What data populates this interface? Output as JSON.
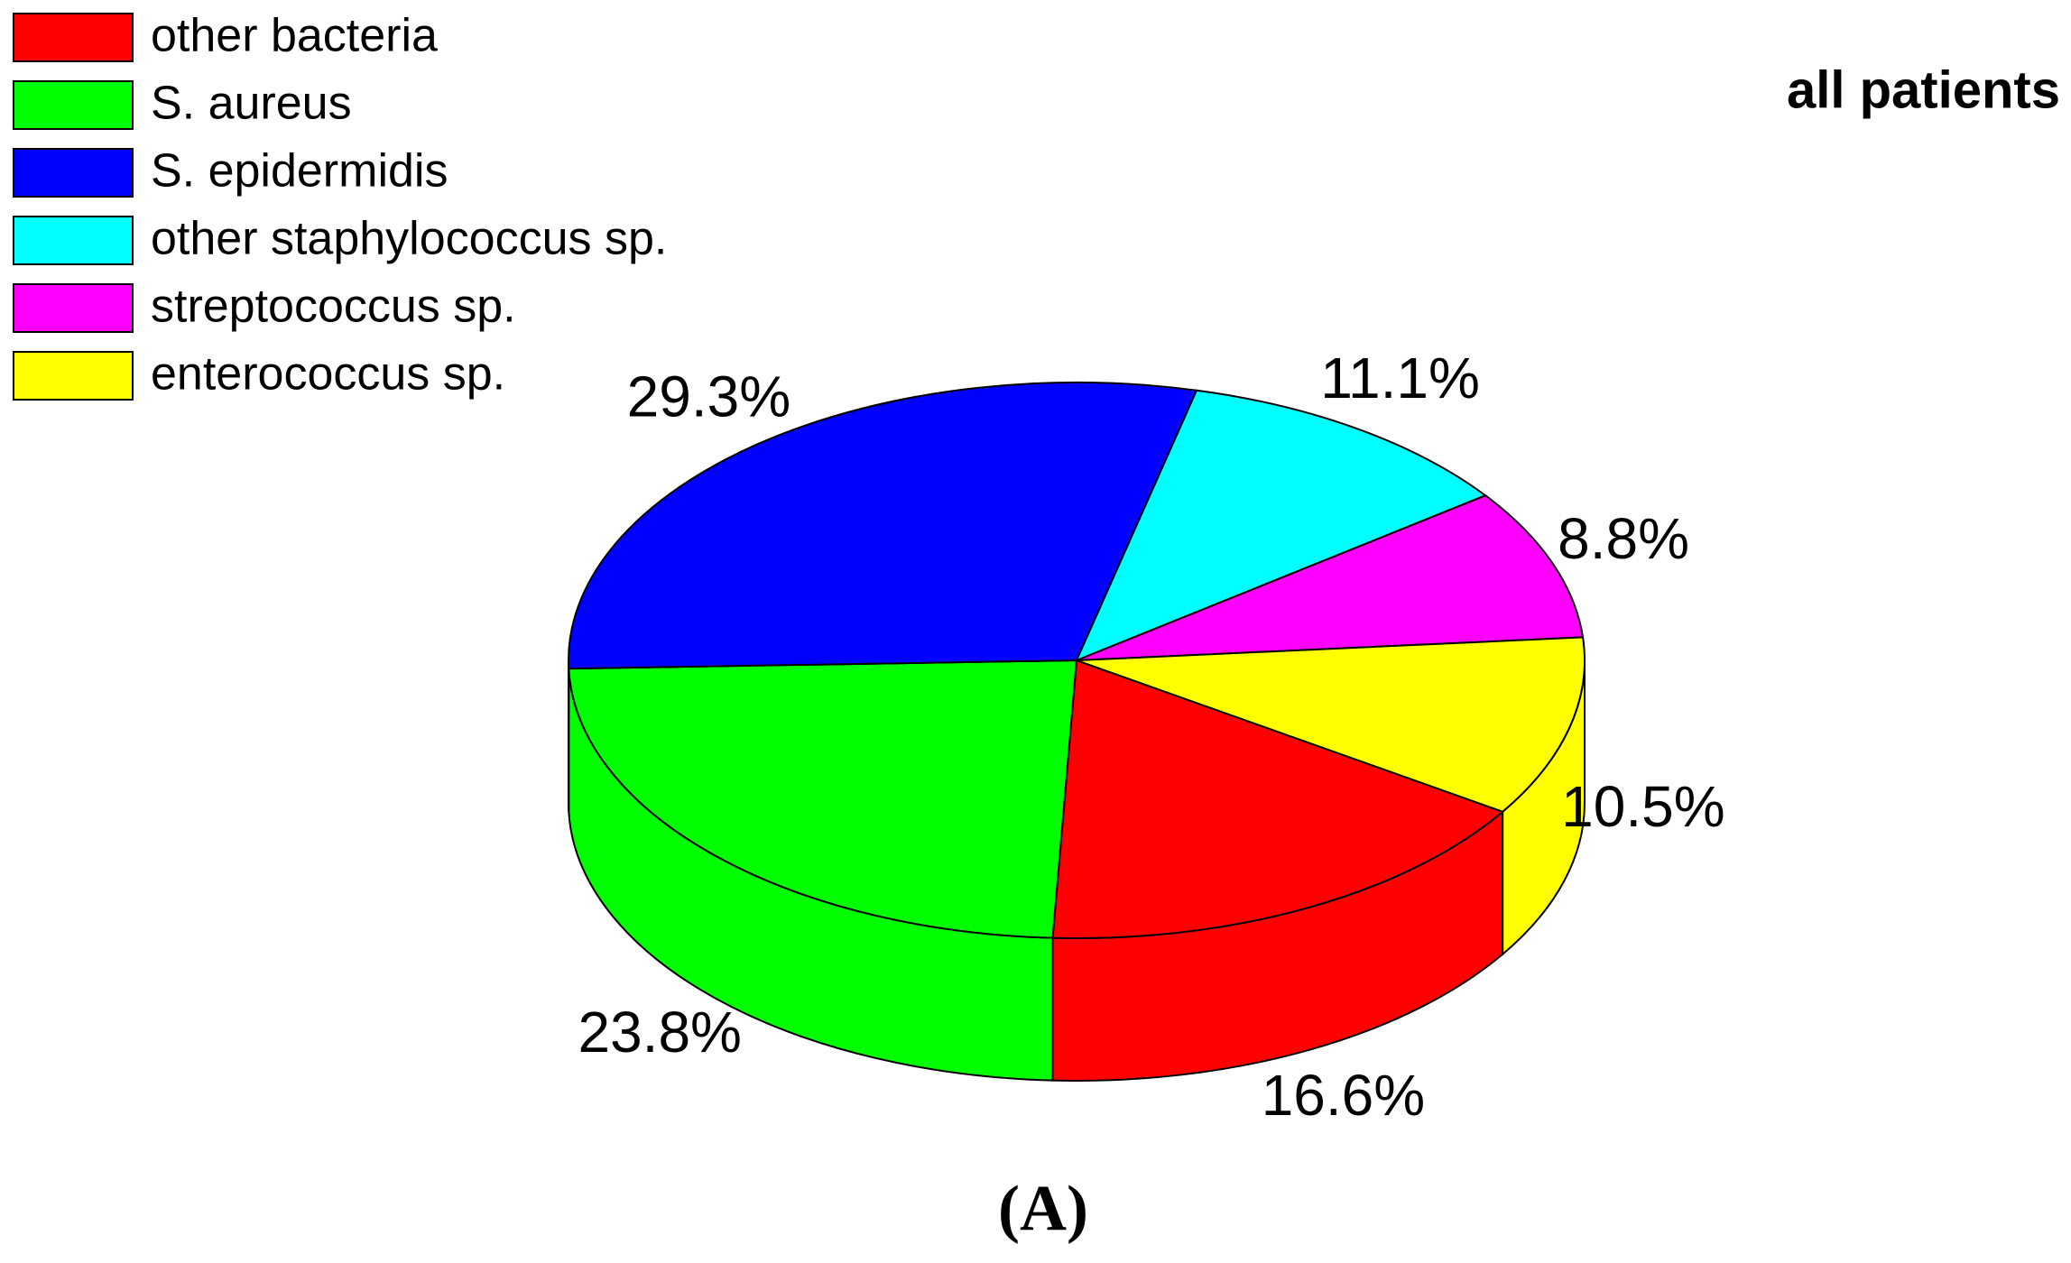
{
  "chart_data": {
    "type": "pie",
    "title": "all patients",
    "caption": "(A)",
    "categories": [
      "other bacteria",
      "S. aureus",
      "S. epidermidis",
      "other staphylococcus sp.",
      "streptococcus sp.",
      "enterococcus sp."
    ],
    "values": [
      16.6,
      23.8,
      29.3,
      11.1,
      8.8,
      10.5
    ],
    "value_labels": [
      "16.6%",
      "23.8%",
      "29.3%",
      "11.1%",
      "8.8%",
      "10.5%"
    ],
    "colors": [
      "#ff0000",
      "#00ff00",
      "#0000ff",
      "#00ffff",
      "#ff00ff",
      "#ffff00"
    ],
    "legend": "upper left"
  }
}
